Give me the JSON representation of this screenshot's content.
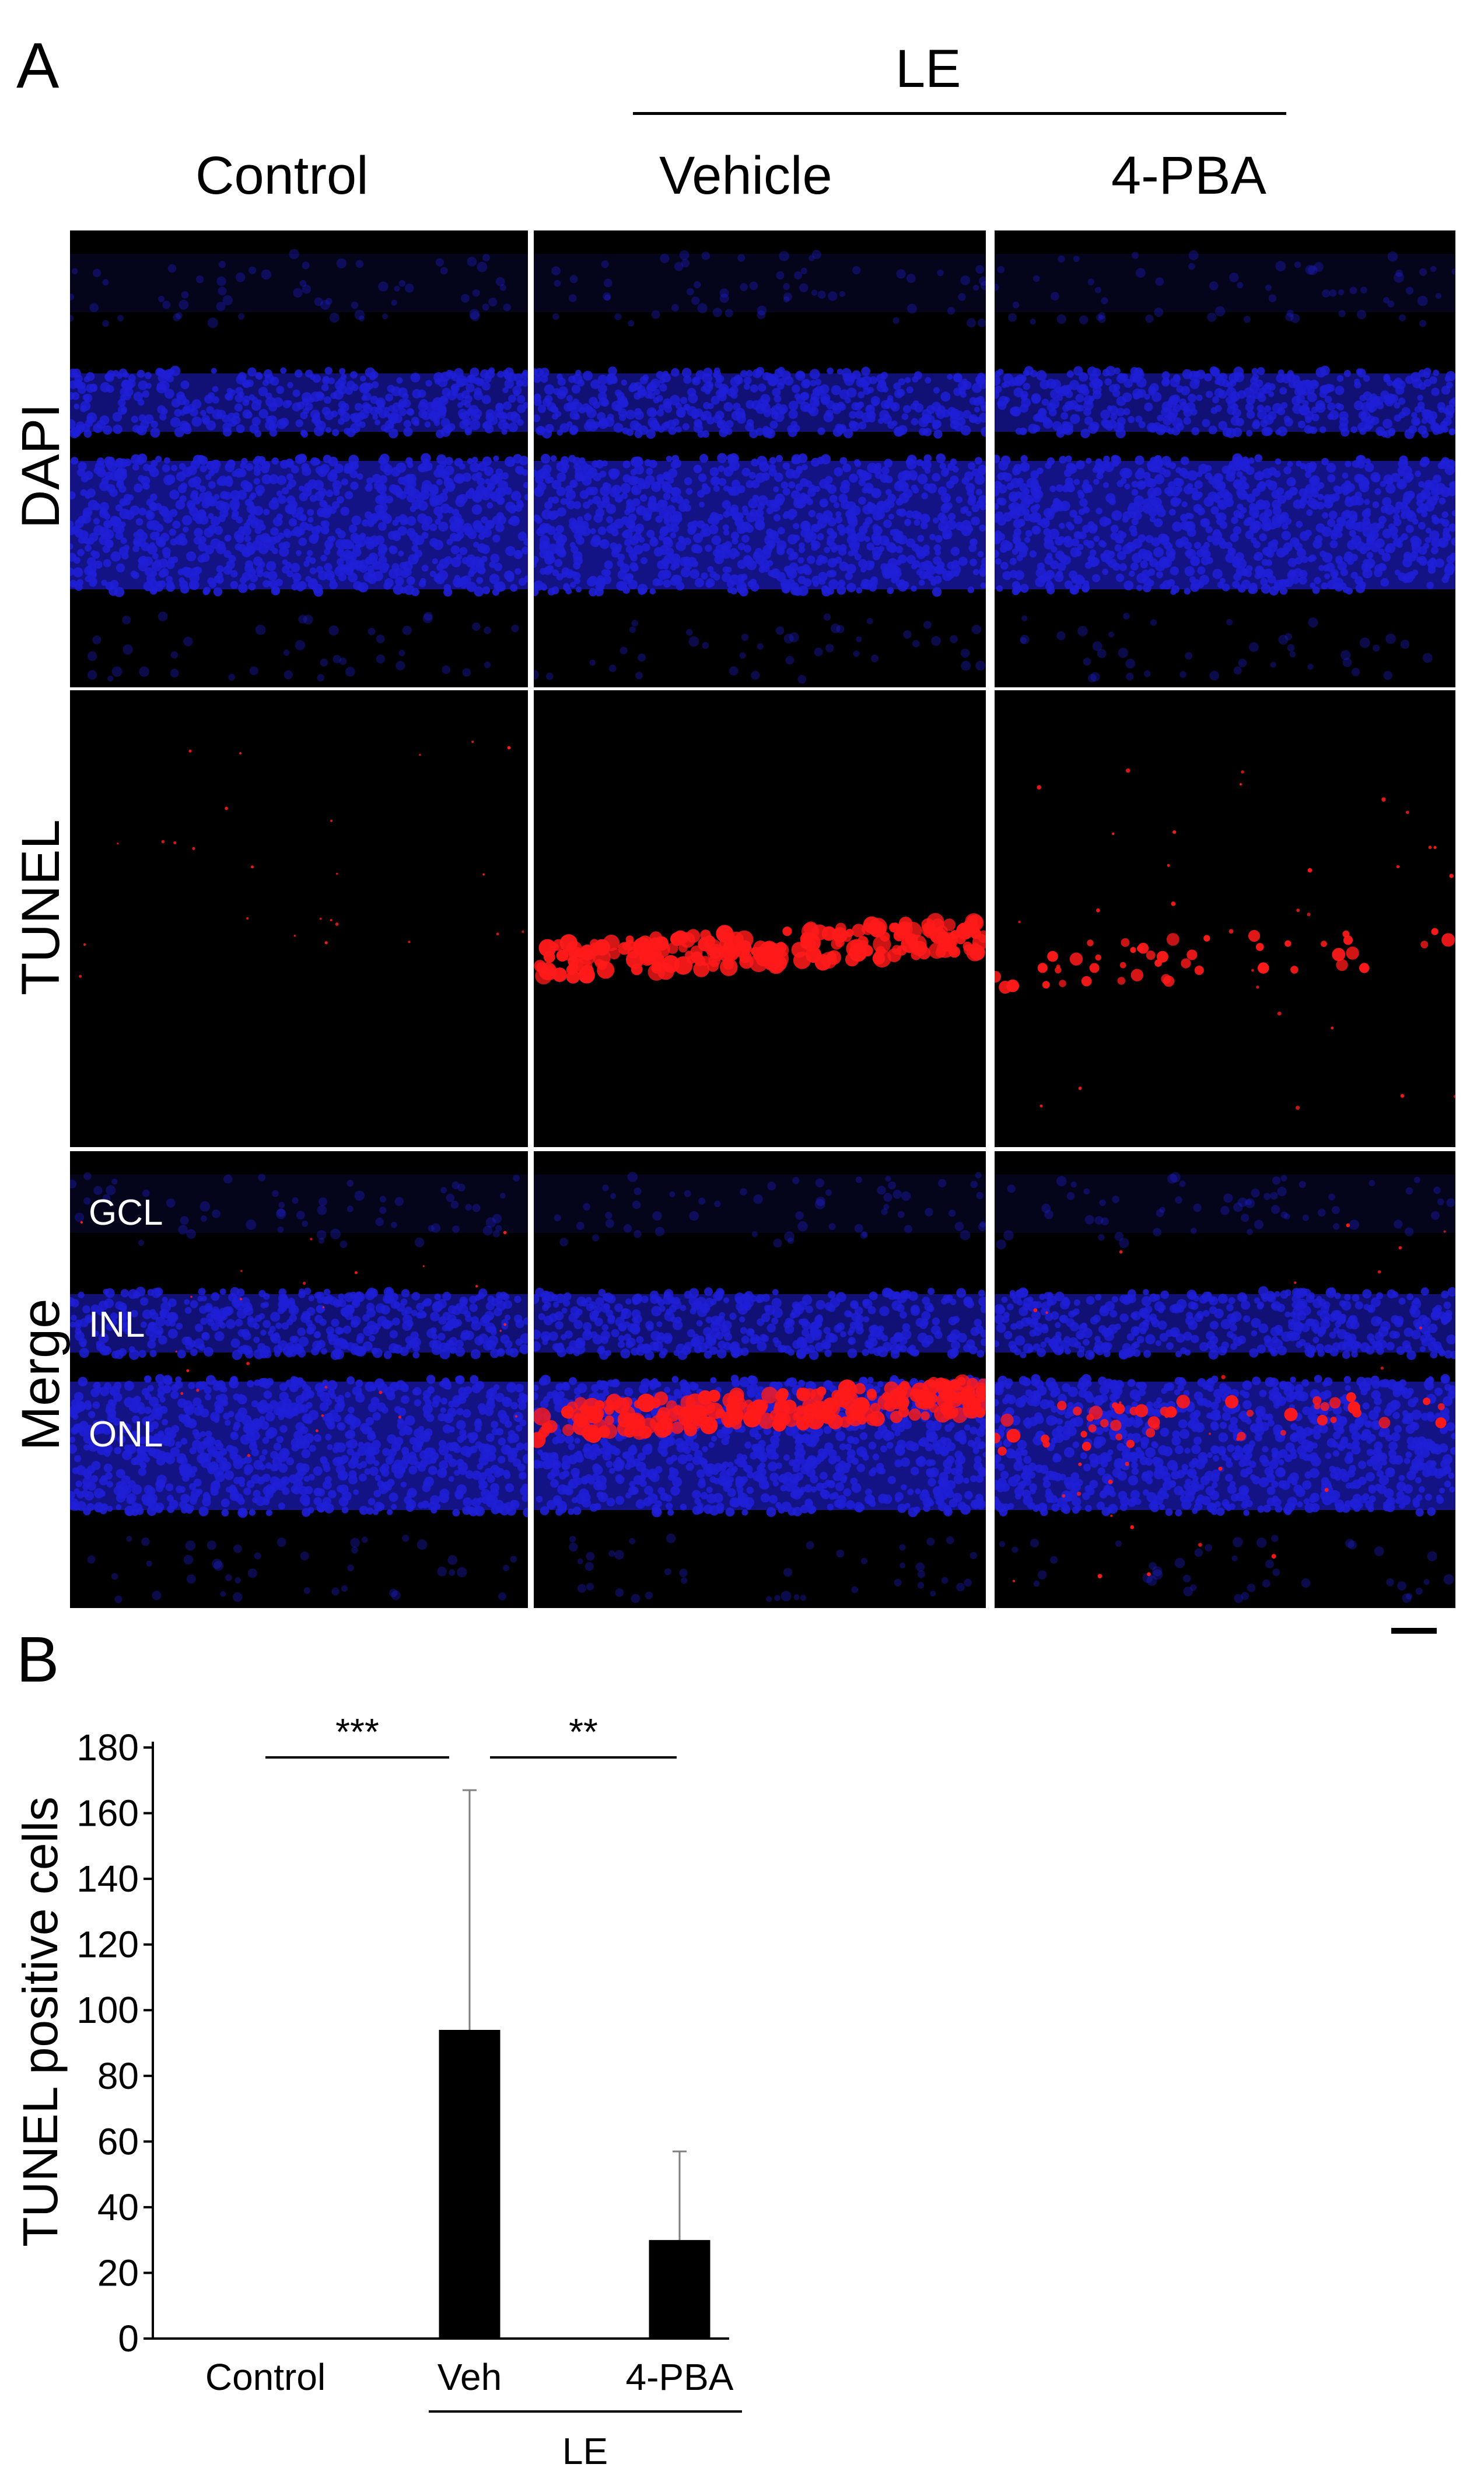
{
  "figure": {
    "panel_a_letter": "A",
    "panel_b_letter": "B",
    "group_header": "LE",
    "columns": [
      "Control",
      "Vehicle",
      "4-PBA"
    ],
    "rows": [
      "DAPI",
      "TUNEL",
      "Merge"
    ],
    "layer_labels": [
      "GCL",
      "INL",
      "ONL"
    ],
    "colors": {
      "nuclei_blue": "#1f1fd6",
      "tunel_red": "#ff1a1a",
      "background": "#000000"
    }
  },
  "chart_data": {
    "type": "bar",
    "categories": [
      "Control",
      "Veh",
      "4-PBA"
    ],
    "values": [
      0,
      94,
      30
    ],
    "error_upper": [
      0,
      167,
      57
    ],
    "ylabel": "TUNEL positive cells",
    "xlabel": "",
    "group_label": "LE",
    "group_members": [
      "Veh",
      "4-PBA"
    ],
    "ylim": [
      0,
      180
    ],
    "yticks": [
      "0",
      "20",
      "40",
      "60",
      "80",
      "100",
      "120",
      "140",
      "160",
      "180"
    ],
    "significance": [
      {
        "between": [
          "Control",
          "Veh"
        ],
        "label": "***"
      },
      {
        "between": [
          "Veh",
          "4-PBA"
        ],
        "label": "**"
      }
    ],
    "bar_color": "#000000",
    "grid": false
  }
}
